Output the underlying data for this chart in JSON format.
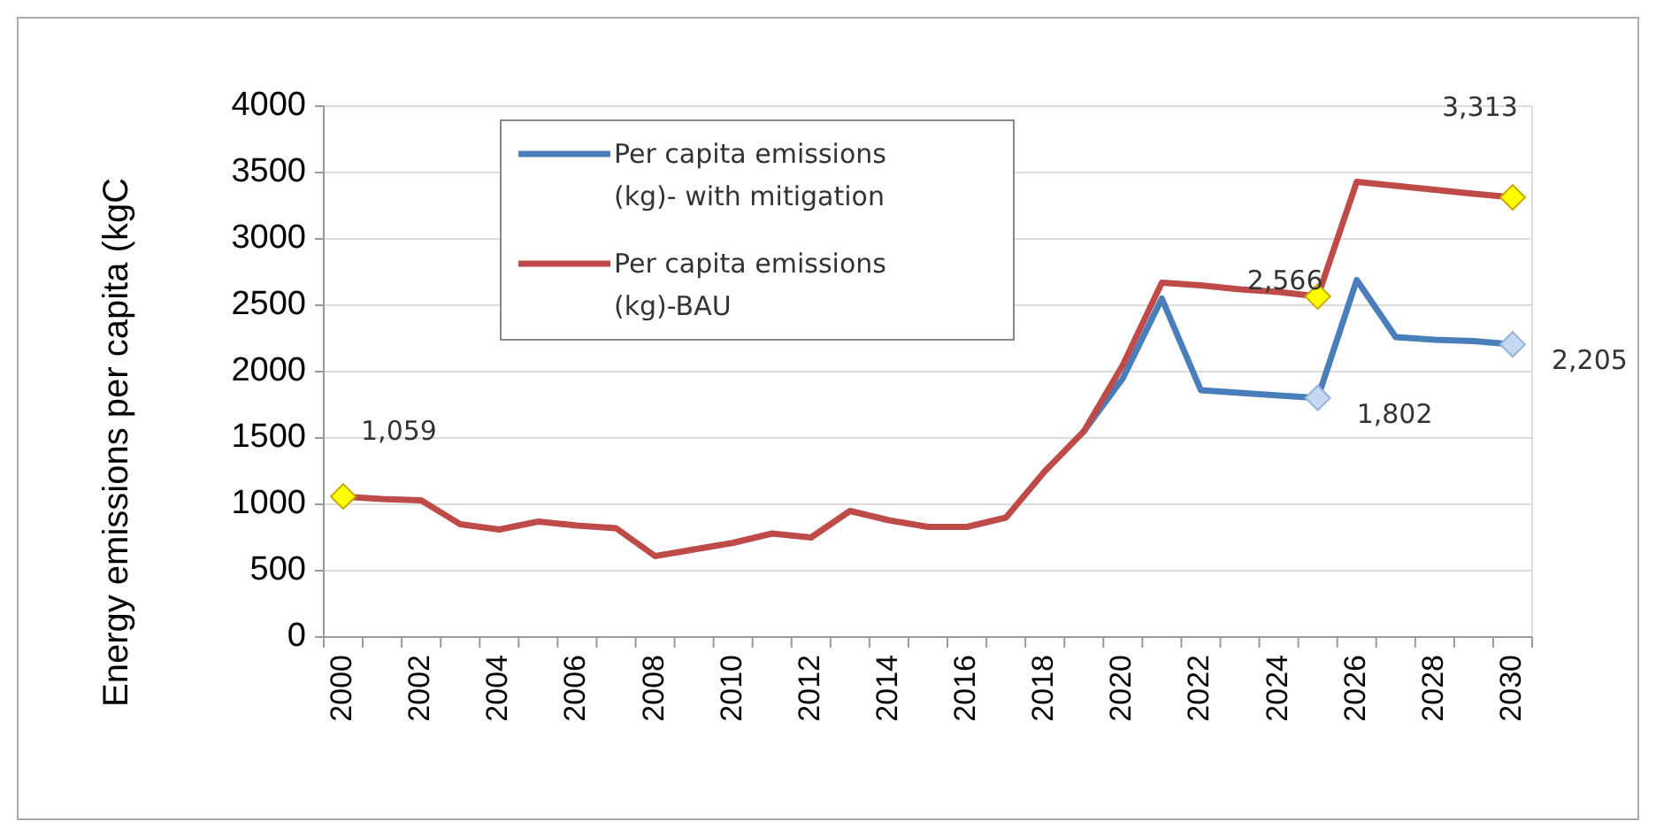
{
  "chart_data": {
    "type": "line",
    "ylabel": "Energy emissions per capita (kgC",
    "categories": [
      "2000",
      null,
      "2002",
      null,
      "2004",
      null,
      "2006",
      null,
      "2008",
      null,
      "2010",
      null,
      "2012",
      null,
      "2014",
      null,
      "2016",
      null,
      "2018",
      null,
      "2020",
      null,
      "2022",
      null,
      "2024",
      null,
      "2026",
      null,
      "2028",
      null,
      "2030"
    ],
    "series": [
      {
        "name": "Per capita emissions (kg)- with mitigation",
        "color": "#4a7ebb",
        "values": [
          null,
          null,
          null,
          null,
          null,
          null,
          null,
          null,
          null,
          null,
          null,
          null,
          null,
          null,
          null,
          null,
          null,
          null,
          null,
          1550,
          1950,
          2550,
          1860,
          1840,
          1820,
          1802,
          2690,
          2260,
          2240,
          2230,
          2205
        ],
        "value_labels": [
          null,
          null,
          null,
          null,
          null,
          null,
          null,
          null,
          null,
          null,
          null,
          null,
          null,
          null,
          null,
          null,
          null,
          null,
          null,
          null,
          null,
          null,
          null,
          null,
          null,
          "1,802",
          null,
          null,
          null,
          null,
          "2,205"
        ]
      },
      {
        "name": "Per capita emissions (kg)-BAU",
        "color": "#be4b48",
        "values": [
          1059,
          1040,
          1030,
          850,
          810,
          870,
          840,
          820,
          610,
          660,
          710,
          780,
          750,
          950,
          880,
          830,
          830,
          900,
          1250,
          1550,
          2050,
          2670,
          2650,
          2620,
          2600,
          2566,
          3430,
          3400,
          3370,
          3340,
          3313
        ],
        "value_labels": [
          "1,059",
          null,
          null,
          null,
          null,
          null,
          null,
          null,
          null,
          null,
          null,
          null,
          null,
          null,
          null,
          null,
          null,
          null,
          null,
          null,
          null,
          null,
          null,
          null,
          null,
          "2,566",
          null,
          null,
          null,
          null,
          "3,313"
        ]
      }
    ],
    "ylim": [
      0,
      4000
    ],
    "yticks": [
      0,
      500,
      1000,
      1500,
      2000,
      2500,
      3000,
      3500,
      4000
    ],
    "grid": "y",
    "legend": "top left"
  }
}
